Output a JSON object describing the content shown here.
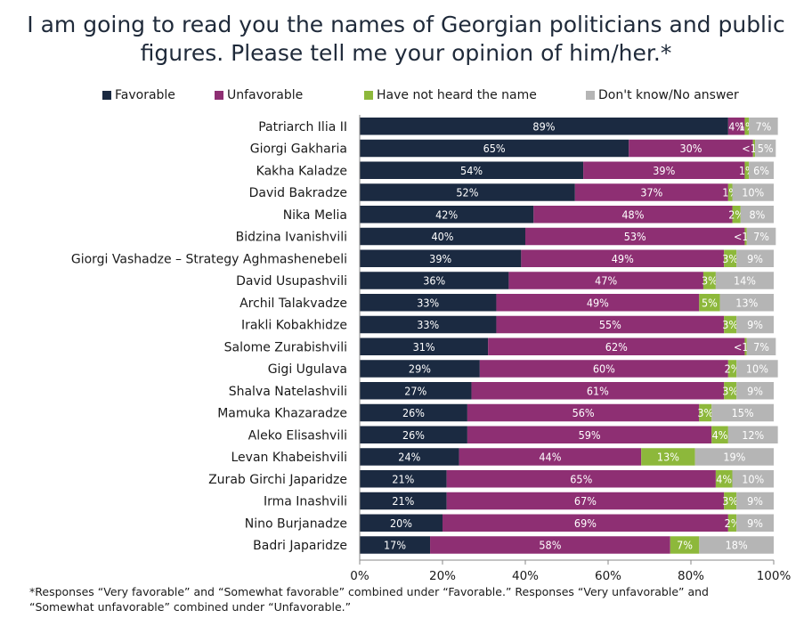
{
  "title": {
    "line1": "I am going to read you the names of Georgian politicians and public",
    "line2": "figures. Please tell me your opinion of him/her.*"
  },
  "colors": {
    "favorable": "#1b2a41",
    "unfavorable": "#8e2f73",
    "not_heard": "#8db83b",
    "dont_know": "#b5b5b5"
  },
  "chart_data": {
    "type": "bar",
    "orientation": "horizontal-stacked-100",
    "categories": [
      "Patriarch Ilia II",
      "Giorgi Gakharia",
      "Kakha Kaladze",
      "David Bakradze",
      "Nika Melia",
      "Bidzina Ivanishvili",
      "Giorgi Vashadze – Strategy Aghmashenebeli",
      "David Usupashvili",
      "Archil Talakvadze",
      "Irakli Kobakhidze",
      "Salome Zurabishvili",
      "Gigi Ugulava",
      "Shalva Natelashvili",
      "Mamuka Khazaradze",
      "Aleko Elisashvili",
      "Levan Khabeishvili",
      "Zurab Girchi Japaridze",
      "Irma Inashvili",
      "Nino Burjanadze",
      "Badri Japaridze"
    ],
    "series": [
      {
        "name": "Favorable",
        "color": "#1b2a41",
        "values": [
          89,
          65,
          54,
          52,
          42,
          40,
          39,
          36,
          33,
          33,
          31,
          29,
          27,
          26,
          26,
          24,
          21,
          21,
          20,
          17
        ],
        "labels": [
          "89%",
          "65%",
          "54%",
          "52%",
          "42%",
          "40%",
          "39%",
          "36%",
          "33%",
          "33%",
          "31%",
          "29%",
          "27%",
          "26%",
          "26%",
          "24%",
          "21%",
          "21%",
          "20%",
          "17%"
        ]
      },
      {
        "name": "Unfavorable",
        "color": "#8e2f73",
        "values": [
          4,
          30,
          39,
          37,
          48,
          53,
          49,
          47,
          49,
          55,
          62,
          60,
          61,
          56,
          59,
          44,
          65,
          67,
          69,
          58
        ],
        "labels": [
          "4%",
          "30%",
          "39%",
          "37%",
          "48%",
          "53%",
          "49%",
          "47%",
          "49%",
          "55%",
          "62%",
          "60%",
          "61%",
          "56%",
          "59%",
          "44%",
          "65%",
          "67%",
          "69%",
          "58%"
        ]
      },
      {
        "name": "Have not heard the name",
        "color": "#8db83b",
        "values": [
          1,
          0.5,
          1,
          1,
          2,
          0.5,
          3,
          3,
          5,
          3,
          0.5,
          2,
          3,
          3,
          4,
          13,
          4,
          3,
          2,
          7
        ],
        "labels": [
          "1%",
          "<1%",
          "1%",
          "1%",
          "2%",
          "<1%",
          "3%",
          "3%",
          "5%",
          "3%",
          "<1%",
          "2%",
          "3%",
          "3%",
          "4%",
          "13%",
          "4%",
          "3%",
          "2%",
          "7%"
        ]
      },
      {
        "name": "Don't know/No answer",
        "color": "#b5b5b5",
        "values": [
          7,
          5,
          6,
          10,
          8,
          7,
          9,
          14,
          13,
          9,
          7,
          10,
          9,
          15,
          12,
          19,
          10,
          9,
          9,
          18
        ],
        "labels": [
          "7%",
          "5%",
          "6%",
          "10%",
          "8%",
          "7%",
          "9%",
          "14%",
          "13%",
          "9%",
          "7%",
          "10%",
          "9%",
          "15%",
          "12%",
          "19%",
          "10%",
          "9%",
          "9%",
          "18%"
        ]
      }
    ],
    "x_ticks": [
      "0%",
      "20%",
      "40%",
      "60%",
      "80%",
      "100%"
    ],
    "xlim": [
      0,
      100
    ],
    "legend_position": "top",
    "grid": false
  },
  "footnote": {
    "line1": "*Responses “Very favorable” and “Somewhat favorable” combined under “Favorable.” Responses “Very unfavorable” and",
    "line2": "“Somewhat unfavorable” combined under “Unfavorable.”"
  }
}
